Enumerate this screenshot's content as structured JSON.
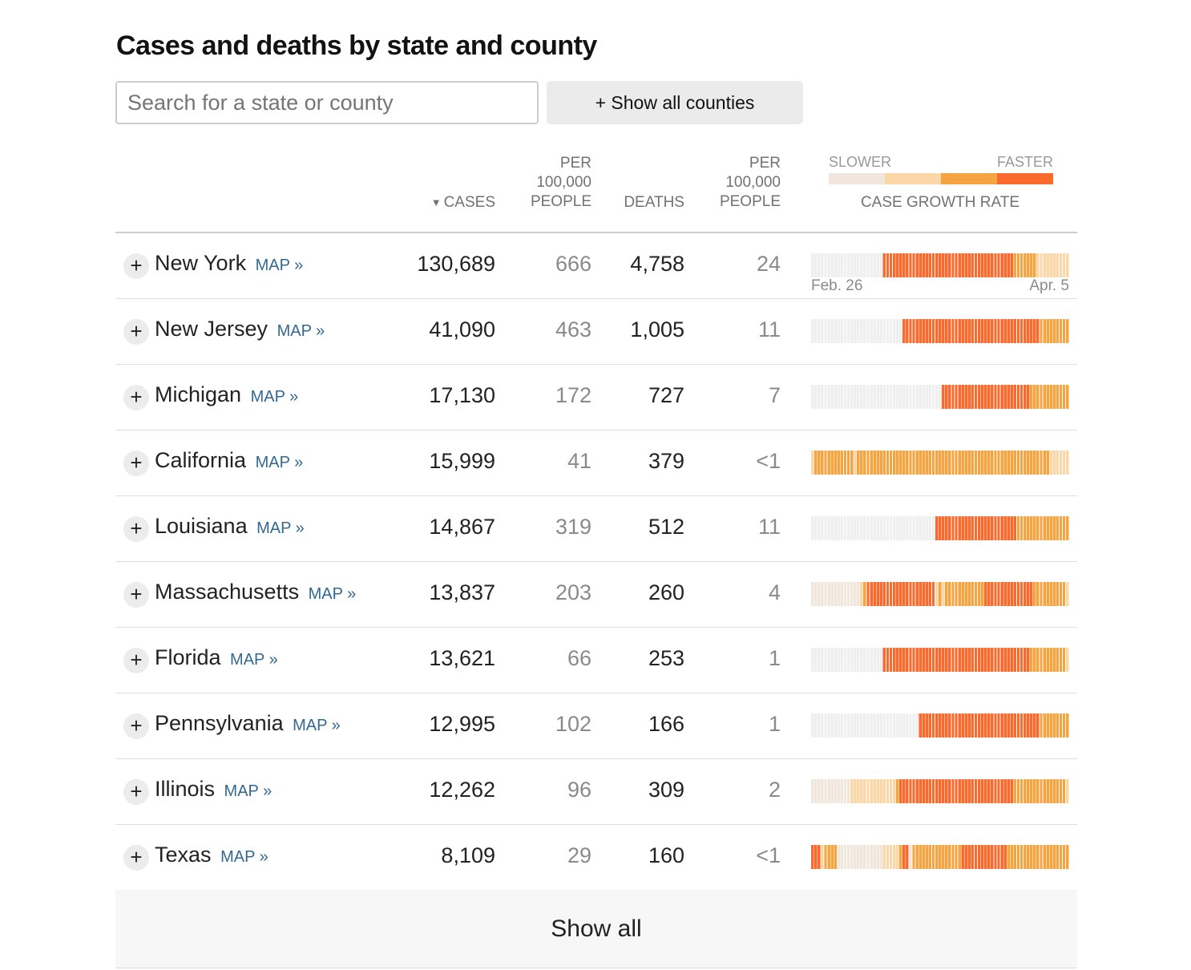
{
  "title": "Cases and deaths by state and county",
  "search": {
    "placeholder": "Search for a state or county"
  },
  "show_counties_label": "+ Show all counties",
  "headers": {
    "cases": "CASES",
    "per_100k_cases": [
      "PER",
      "100,000",
      "PEOPLE"
    ],
    "deaths": "DEATHS",
    "per_100k_deaths": [
      "PER",
      "100,000",
      "PEOPLE"
    ]
  },
  "legend": {
    "slower": "SLOWER",
    "faster": "FASTER",
    "title": "CASE GROWTH RATE",
    "colors": [
      "#f1e6db",
      "#fbd7a8",
      "#f5a442",
      "#fb6a2d"
    ]
  },
  "growth_dates": {
    "start": "Feb. 26",
    "end": "Apr. 5"
  },
  "growth_color_scale": [
    "#efefef",
    "#f1e6db",
    "#fbd7a8",
    "#f5a442",
    "#fb6a2d"
  ],
  "map_label": "MAP »",
  "expand_label": "+",
  "rows": [
    {
      "name": "New York",
      "cases": "130,689",
      "cases_per_100k": "666",
      "deaths": "4,758",
      "deaths_per_100k": "24",
      "growth": "0000000000000000000000444444444444444444444444444444444444444433333332222222222"
    },
    {
      "name": "New Jersey",
      "cases": "41,090",
      "cases_per_100k": "463",
      "deaths": "1,005",
      "deaths_per_100k": "11",
      "growth": "0000000000000000000000000000444444444444444444444444444444444444444444333333333"
    },
    {
      "name": "Michigan",
      "cases": "17,130",
      "cases_per_100k": "172",
      "deaths": "727",
      "deaths_per_100k": "7",
      "growth": "0000000000000000000000000000000000000000444444444444444444444444444333333333333"
    },
    {
      "name": "California",
      "cases": "15,999",
      "cases_per_100k": "41",
      "deaths": "379",
      "deaths_per_100k": "<1",
      "growth": "2333333333333233333333333333333333333333333333333333333333333333333333333222222"
    },
    {
      "name": "Louisiana",
      "cases": "14,867",
      "cases_per_100k": "319",
      "deaths": "512",
      "deaths_per_100k": "11",
      "growth": "0000000000000000000000000000000000000044444444444444444444444443333333333333333"
    },
    {
      "name": "Massachusetts",
      "cases": "13,837",
      "cases_per_100k": "203",
      "deaths": "260",
      "deaths_per_100k": "4",
      "growth": "1111111111111112344444444444444444444423233333333333344444444444444433333333332"
    },
    {
      "name": "Florida",
      "cases": "13,621",
      "cases_per_100k": "66",
      "deaths": "253",
      "deaths_per_100k": "1",
      "growth": "0000000000000000000000444444444444444444444444444444444444444444444333333333332"
    },
    {
      "name": "Pennsylvania",
      "cases": "12,995",
      "cases_per_100k": "102",
      "deaths": "166",
      "deaths_per_100k": "1",
      "growth": "0000000000000000000000000000000004444444444444444444444444444444444444333333333"
    },
    {
      "name": "Illinois",
      "cases": "12,262",
      "cases_per_100k": "96",
      "deaths": "309",
      "deaths_per_100k": "2",
      "growth": "1111111111112222222222222234444444444444444444444444444444444433333333333333332"
    },
    {
      "name": "Texas",
      "cases": "8,109",
      "cases_per_100k": "29",
      "deaths": "160",
      "deaths_per_100k": "<1",
      "growth": "4442333311111111111111222223441333333333333333444444444444443333333333333333333"
    }
  ],
  "show_all_label": "Show all"
}
